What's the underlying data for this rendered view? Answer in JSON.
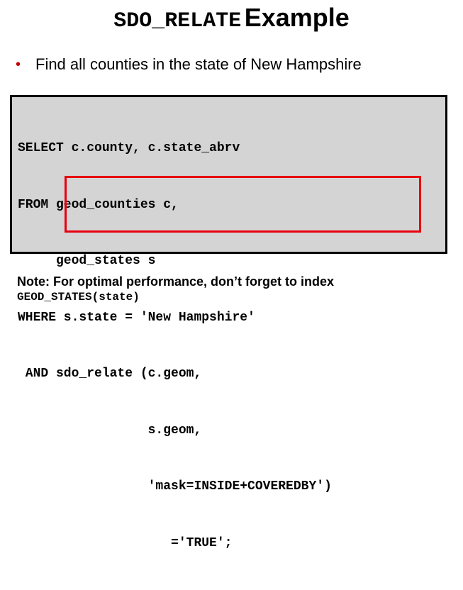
{
  "title": {
    "mono": "SDO_RELATE",
    "sans": "Example"
  },
  "bullet": {
    "text": "Find all counties in the state of New Hampshire"
  },
  "code": {
    "lines": [
      "SELECT c.county, c.state_abrv",
      "FROM geod_counties c,",
      "     geod_states s",
      "WHERE s.state = 'New Hampshire'",
      " AND sdo_relate (c.geom,",
      "                 s.geom,",
      "                 'mask=INSIDE+COVEREDBY')",
      "                    ='TRUE';"
    ]
  },
  "colors": {
    "bullet": "#c00000",
    "highlight_border": "#e8000f",
    "code_background": "#d4d4d4"
  },
  "note": {
    "text": "Note: For optimal performance, don’t forget to index",
    "code": "GEOD_STATES(state)"
  }
}
